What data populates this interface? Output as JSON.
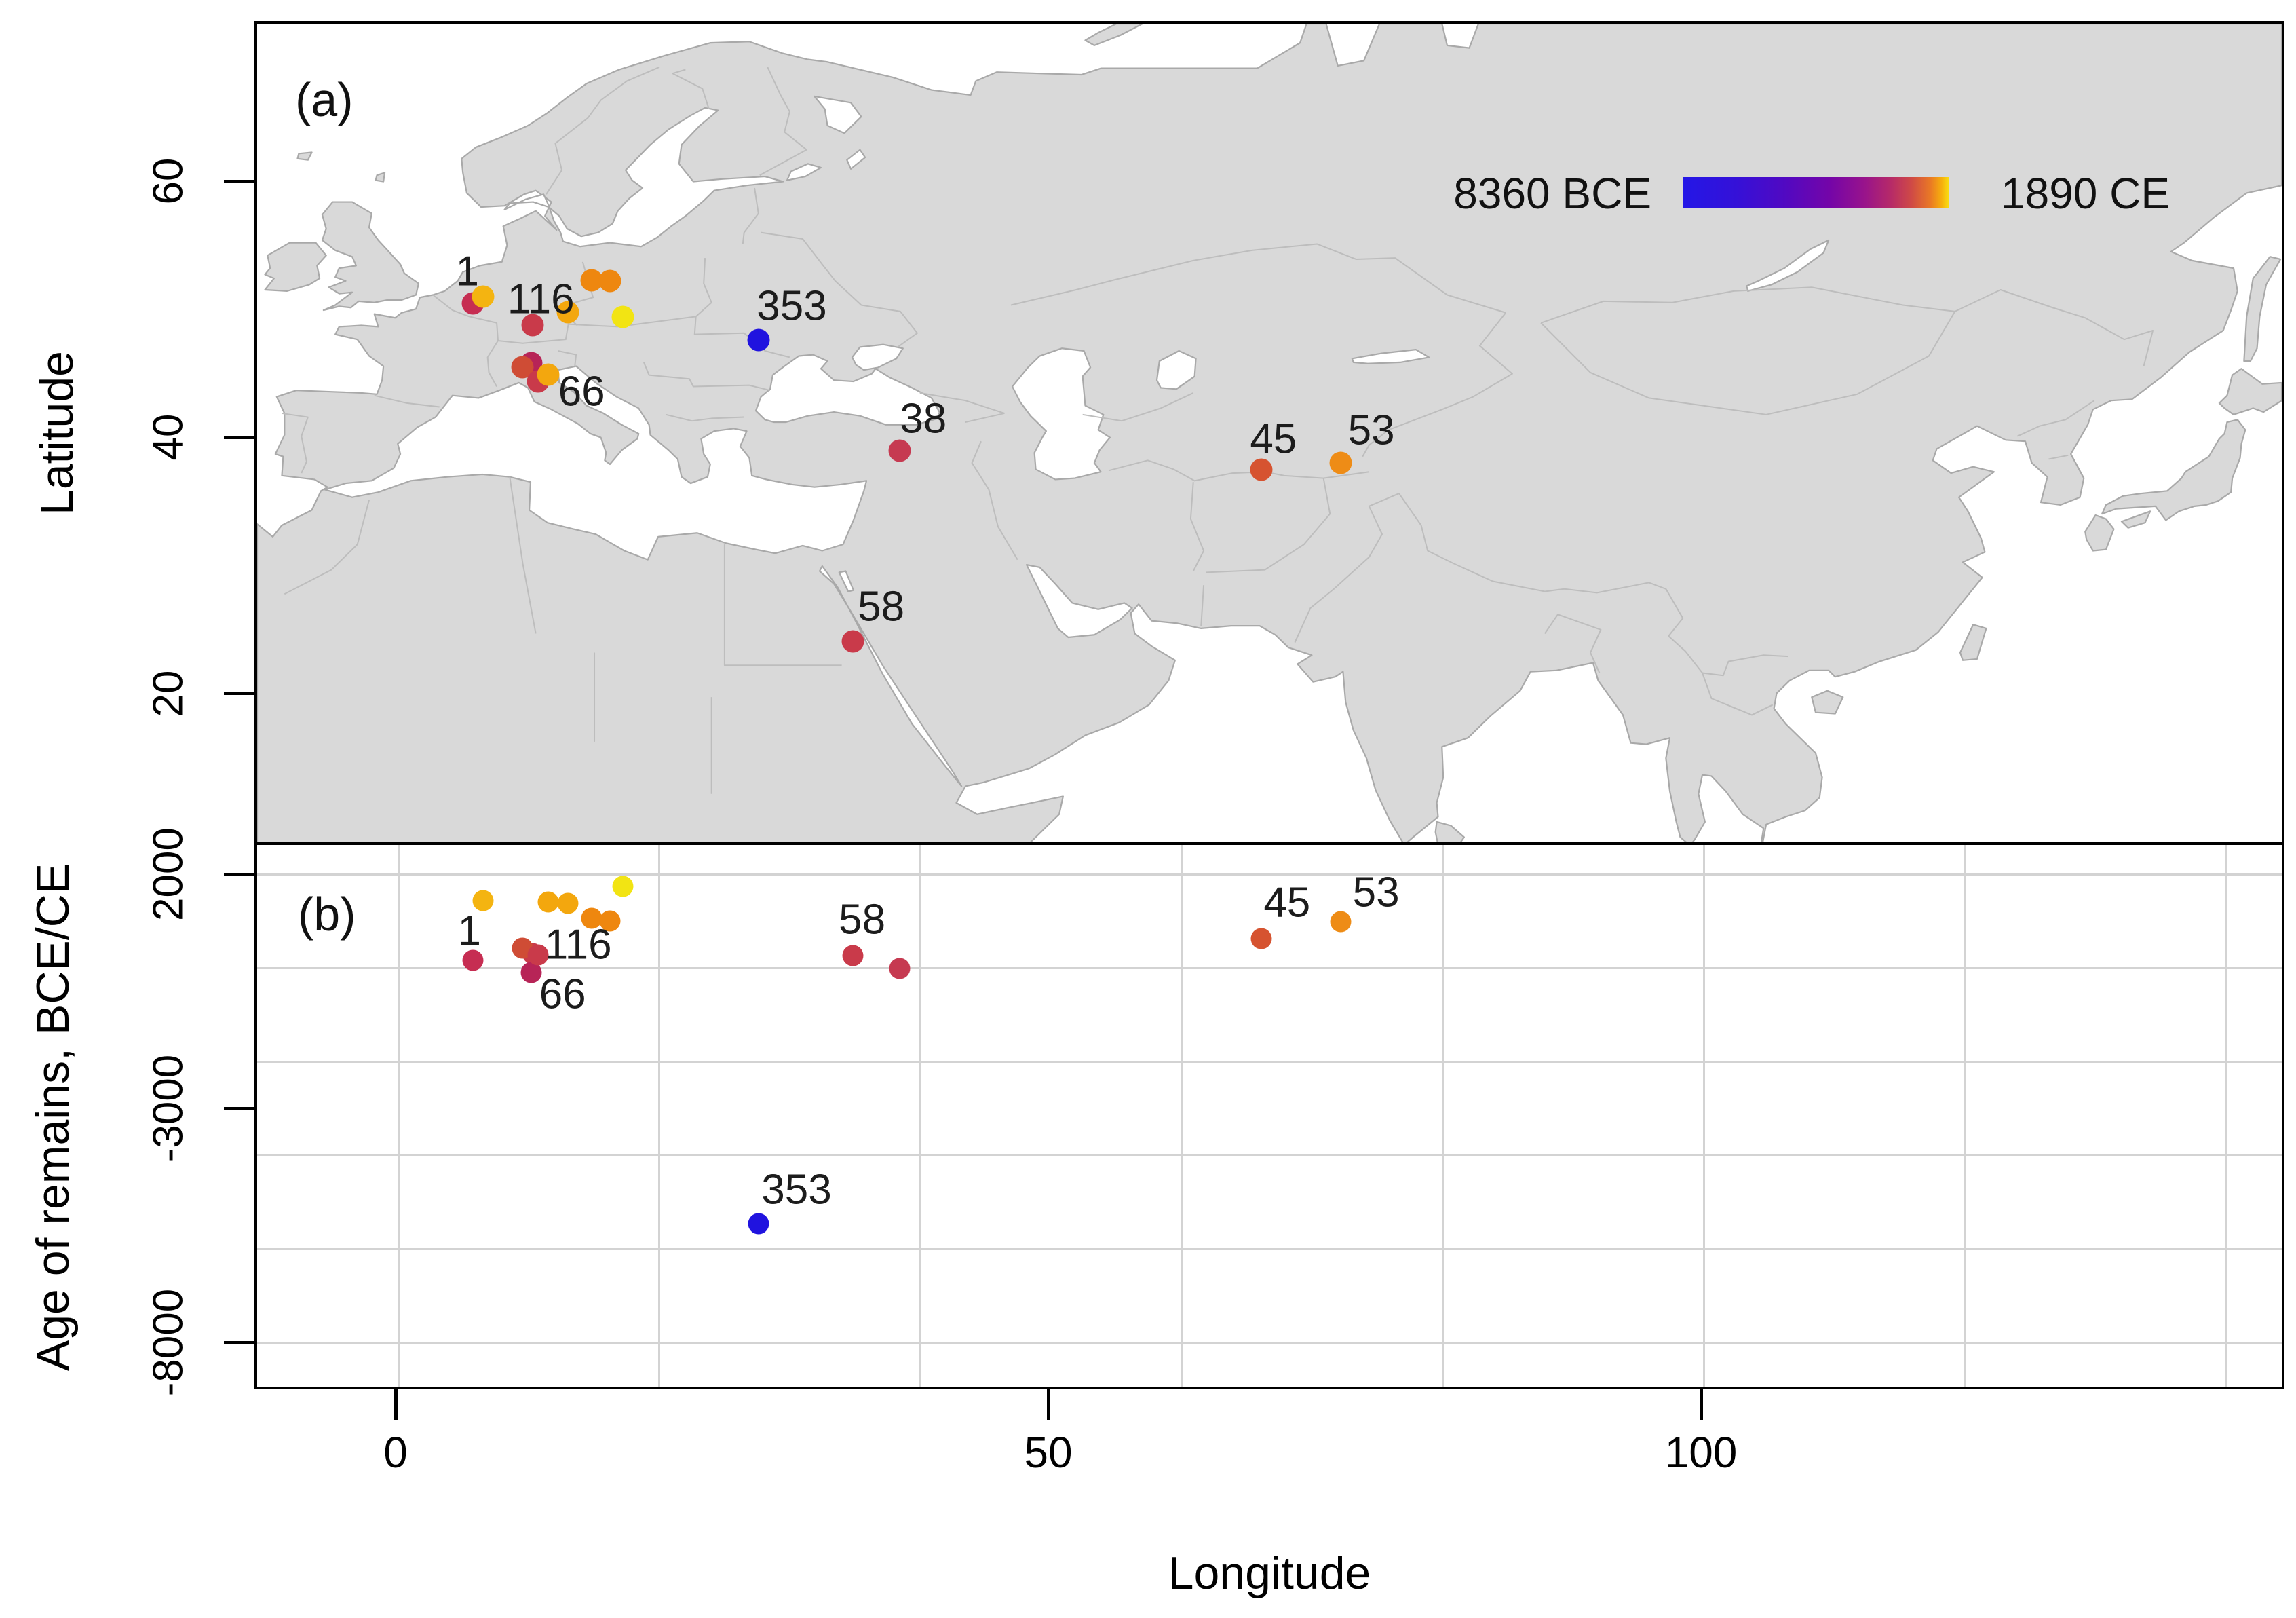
{
  "figure": {
    "panel_a_tag": "(a)",
    "panel_b_tag": "(b)",
    "xlabel": "Longitude",
    "ylabel_a": "Latitude",
    "ylabel_b": "Age of remains, BCE/CE",
    "colorbar": {
      "min_label": "8360 BCE",
      "max_label": "1890 CE",
      "left_color": "#2417e6",
      "right_color": "#f9e112",
      "style": "blue-purple-magenta-orange-yellow gradient"
    },
    "map_colors": {
      "land": "#d9d9d9",
      "coast": "#a9a9a9",
      "country_border": "#bdbdbd"
    }
  },
  "chart_data": {
    "type": "scatter",
    "panels": [
      {
        "id": "a",
        "title": "(a)",
        "subtype": "map-scatter",
        "ylabel": "Latitude",
        "yticks": [
          "60",
          "40",
          "20"
        ],
        "xlim": [
          -10.8,
          144.7
        ],
        "ylim": [
          8.2,
          72.5
        ],
        "grid": false,
        "legend_position": "top-right"
      },
      {
        "id": "b",
        "title": "(b)",
        "subtype": "scatter",
        "xlabel": "Longitude",
        "ylabel": "Age of remains, BCE/CE",
        "xticks": [
          "0",
          "50",
          "100"
        ],
        "yticks": [
          "2000",
          "-3000",
          "-8000"
        ],
        "xlim": [
          -10.8,
          144.7
        ],
        "ylim": [
          -9000,
          2620
        ],
        "grid": true,
        "grid_x_values": [
          0,
          20,
          40,
          60,
          80,
          100,
          120,
          140
        ],
        "grid_y_values": [
          2000,
          0,
          -2000,
          -4000,
          -6000,
          -8000
        ]
      }
    ],
    "sites": [
      {
        "label": "1",
        "lon": 5.7,
        "lat": 50.7,
        "age_ce": 160,
        "color": "#c62d52"
      },
      {
        "label": "",
        "lon": 6.5,
        "lat": 51.2,
        "age_ce": 1440,
        "color": "#f4b411"
      },
      {
        "label": "",
        "lon": 14.8,
        "lat": 52.5,
        "age_ce": 1060,
        "color": "#ee870f"
      },
      {
        "label": "",
        "lon": 16.2,
        "lat": 52.4,
        "age_ce": 1000,
        "color": "#ee870f"
      },
      {
        "label": "",
        "lon": 13.0,
        "lat": 50.0,
        "age_ce": 1380,
        "color": "#f3a70e"
      },
      {
        "label": "",
        "lon": 17.2,
        "lat": 49.6,
        "age_ce": 1740,
        "color": "#f2e413"
      },
      {
        "label": "116",
        "lon": 10.3,
        "lat": 49.0,
        "age_ce": 300,
        "color": "#c93a4a"
      },
      {
        "label": "66",
        "lon": 10.2,
        "lat": 46.0,
        "age_ce": -100,
        "color": "#b72457"
      },
      {
        "label": "",
        "lon": 9.5,
        "lat": 45.7,
        "age_ce": 420,
        "color": "#cf4c35"
      },
      {
        "label": "",
        "lon": 10.7,
        "lat": 44.6,
        "age_ce": 280,
        "color": "#c93a4a"
      },
      {
        "label": "",
        "lon": 11.5,
        "lat": 45.1,
        "age_ce": 1410,
        "color": "#f3a70e"
      },
      {
        "label": "353",
        "lon": 27.6,
        "lat": 47.8,
        "age_ce": -5460,
        "color": "#2013df"
      },
      {
        "label": "38",
        "lon": 38.4,
        "lat": 39.2,
        "age_ce": -20,
        "color": "#c63a51",
        "label_b": false
      },
      {
        "label": "58",
        "lon": 34.8,
        "lat": 24.3,
        "age_ce": 260,
        "color": "#c93a4a"
      },
      {
        "label": "45",
        "lon": 66.1,
        "lat": 37.7,
        "age_ce": 620,
        "color": "#d65330"
      },
      {
        "label": "53",
        "lon": 72.2,
        "lat": 38.2,
        "age_ce": 990,
        "color": "#ee8c16"
      }
    ]
  }
}
